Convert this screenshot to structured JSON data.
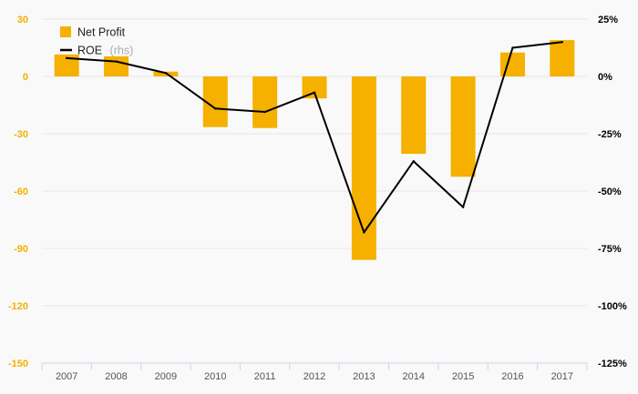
{
  "chart_data": {
    "type": "bar",
    "categories": [
      "2007",
      "2008",
      "2009",
      "2010",
      "2011",
      "2012",
      "2013",
      "2014",
      "2015",
      "2016",
      "2017"
    ],
    "series": [
      {
        "name": "Net Profit",
        "type": "bar",
        "axis": "left",
        "color": "#f5b000",
        "values": [
          11.5,
          10.5,
          2.5,
          -26.5,
          -27,
          -11.5,
          -96,
          -40.5,
          -52.5,
          12.5,
          19
        ]
      },
      {
        "name": "ROE",
        "name_suffix": "(rhs)",
        "type": "line",
        "axis": "right",
        "color": "#000000",
        "values": [
          8,
          6.5,
          1.5,
          -14,
          -15.5,
          -7,
          -68,
          -37,
          -57,
          12.5,
          15
        ]
      }
    ],
    "y_left": {
      "ylim": [
        -150,
        30
      ],
      "ticks": [
        30,
        0,
        -30,
        -60,
        -90,
        -120,
        -150
      ],
      "tick_labels": [
        "30",
        "0",
        "-30",
        "-60",
        "-90",
        "-120",
        "-150"
      ],
      "tick_color": "#f5b000"
    },
    "y_right": {
      "ylim": [
        -125,
        25
      ],
      "ticks": [
        25,
        0,
        -25,
        -50,
        -75,
        -100,
        -125
      ],
      "tick_labels": [
        "25%",
        "0%",
        "-25%",
        "-50%",
        "-75%",
        "-100%",
        "-125%"
      ]
    },
    "grid": true,
    "legend_position": "top-left",
    "colors": {
      "background": "#f9f9f9",
      "grid": "#e8e8e8",
      "axis": "#ccd6eb"
    }
  }
}
